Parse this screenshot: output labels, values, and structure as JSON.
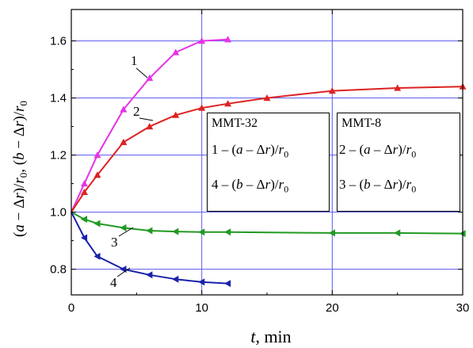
{
  "chart_data": {
    "type": "line",
    "xlabel": "t, min",
    "ylabel": "(a − Δr)/r0, (b − Δr)/r0",
    "xlim": [
      0,
      30
    ],
    "ylim": [
      0.71,
      1.71
    ],
    "xticks": [
      0,
      10,
      20,
      30
    ],
    "yticks": [
      0.8,
      1.0,
      1.2,
      1.4,
      1.6
    ],
    "grid": "major, blue lines",
    "series": [
      {
        "name": "1",
        "color": "#e633e6",
        "marker": "triangle-up",
        "x": [
          0,
          1,
          2,
          4,
          6,
          8,
          10,
          12
        ],
        "y": [
          1.0,
          1.1,
          1.2,
          1.36,
          1.47,
          1.56,
          1.6,
          1.605
        ]
      },
      {
        "name": "2",
        "color": "#dd2222",
        "marker": "triangle-up",
        "x": [
          0,
          1,
          2,
          4,
          6,
          8,
          10,
          12,
          15,
          20,
          25,
          30
        ],
        "y": [
          1.0,
          1.07,
          1.13,
          1.245,
          1.3,
          1.34,
          1.365,
          1.38,
          1.4,
          1.425,
          1.435,
          1.44
        ]
      },
      {
        "name": "3",
        "color": "#229922",
        "marker": "triangle-left",
        "x": [
          0,
          1,
          2,
          4,
          6,
          8,
          10,
          12,
          20,
          25,
          30
        ],
        "y": [
          1.0,
          0.975,
          0.96,
          0.945,
          0.935,
          0.932,
          0.93,
          0.93,
          0.927,
          0.927,
          0.925
        ]
      },
      {
        "name": "4",
        "color": "#1a22aa",
        "marker": "triangle-left",
        "x": [
          0,
          1,
          2,
          4,
          6,
          8,
          10,
          12
        ],
        "y": [
          1.0,
          0.91,
          0.845,
          0.8,
          0.78,
          0.765,
          0.755,
          0.75
        ]
      }
    ],
    "legend": {
      "placement": "center-right",
      "groups": [
        {
          "title": "MMT-32",
          "entries": [
            {
              "num": "1",
              "expr": "(a − Δr)/r0"
            },
            {
              "num": "4",
              "expr": "(b − Δr)/r0"
            }
          ]
        },
        {
          "title": "MMT-8",
          "entries": [
            {
              "num": "2",
              "expr": "(a − Δr)/r0"
            },
            {
              "num": "3",
              "expr": "(b − Δr)/r0"
            }
          ]
        }
      ]
    }
  }
}
